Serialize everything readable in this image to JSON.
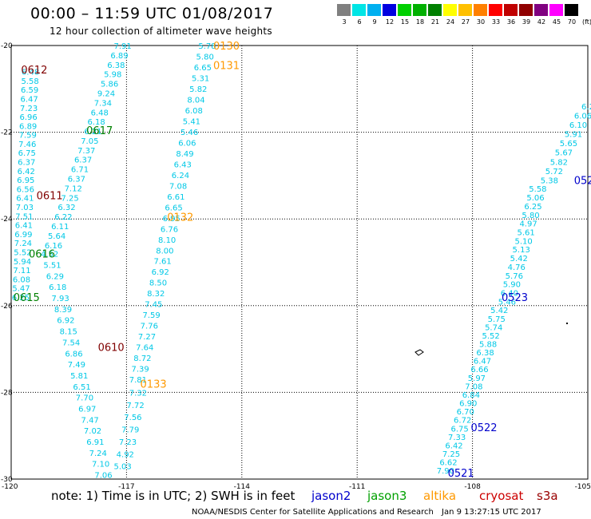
{
  "header": {
    "title": "00:00 – 11:59 UTC 01/08/2017",
    "subtitle": "12 hour collection of altimeter wave heights"
  },
  "colorbar": {
    "labels": [
      "3",
      "6",
      "9",
      "12",
      "15",
      "18",
      "21",
      "24",
      "27",
      "30",
      "33",
      "36",
      "39",
      "42",
      "45",
      "70",
      "(ft)"
    ],
    "colors": [
      "#808080",
      "#00e5e5",
      "#00b0f0",
      "#0000e0",
      "#00d000",
      "#00b000",
      "#008000",
      "#ffff00",
      "#ffc000",
      "#ff8000",
      "#ff0000",
      "#c00000",
      "#900000",
      "#800080",
      "#ff00ff",
      "#000000"
    ]
  },
  "axes": {
    "x_ticks": [
      "-120",
      "-117",
      "-114",
      "-111",
      "-108",
      "-105"
    ],
    "y_ticks": [
      "-20",
      "-22",
      "-24",
      "-26",
      "-28",
      "-30"
    ]
  },
  "footer": {
    "note": "note: 1) Time is in UTC; 2) SWH is in feet",
    "satellites": [
      {
        "name": "jason2",
        "color": "#0000cc"
      },
      {
        "name": "jason3",
        "color": "#00a000"
      },
      {
        "name": "altika",
        "color": "#ff9900"
      },
      {
        "name": "cryosat",
        "color": "#cc0000"
      },
      {
        "name": "s3a",
        "color": "#990000"
      }
    ],
    "credit": "NOAA/NESDIS Center for Satellite Applications and Research",
    "timestamp": "Jan  9 13:27:15 UTC 2017"
  },
  "map_data": {
    "xlim": [
      -120,
      -105
    ],
    "ylim": [
      -30,
      -20
    ],
    "colors": {
      "cyan": "#00c8e6",
      "blue": "#0000cc",
      "green": "#008000",
      "orange": "#ff9900",
      "darkred": "#800000"
    },
    "pass_labels": [
      {
        "text": "0130",
        "lon": -114.4,
        "lat": -20.0,
        "color": "orange"
      },
      {
        "text": "0131",
        "lon": -114.4,
        "lat": -20.45,
        "color": "orange"
      },
      {
        "text": "0132",
        "lon": -115.6,
        "lat": -23.95,
        "color": "orange"
      },
      {
        "text": "0133",
        "lon": -116.3,
        "lat": -27.8,
        "color": "orange"
      },
      {
        "text": "0612",
        "lon": -119.4,
        "lat": -20.55,
        "color": "darkred"
      },
      {
        "text": "0611",
        "lon": -119.0,
        "lat": -23.45,
        "color": "darkred"
      },
      {
        "text": "0610",
        "lon": -117.4,
        "lat": -26.95,
        "color": "darkred"
      },
      {
        "text": "0617",
        "lon": -117.7,
        "lat": -21.95,
        "color": "green"
      },
      {
        "text": "0616",
        "lon": -119.2,
        "lat": -24.8,
        "color": "green"
      },
      {
        "text": "0615",
        "lon": -119.6,
        "lat": -25.8,
        "color": "green"
      },
      {
        "text": "0523",
        "lon": -106.9,
        "lat": -25.8,
        "color": "blue"
      },
      {
        "text": "0522",
        "lon": -107.7,
        "lat": -28.8,
        "color": "blue"
      },
      {
        "text": "0521",
        "lon": -108.3,
        "lat": -29.85,
        "color": "blue"
      },
      {
        "text": "052",
        "lon": -105.1,
        "lat": -23.1,
        "color": "blue"
      }
    ],
    "tracks": [
      {
        "name": "track-a",
        "color": "cyan",
        "start": [
          -119.5,
          -20.6
        ],
        "end": [
          -119.75,
          -25.8
        ],
        "values": [
          "6.48",
          "5.58",
          "6.59",
          "6.47",
          "7.23",
          "6.96",
          "6.89",
          "7.59",
          "7.46",
          "6.75",
          "6.37",
          "6.42",
          "6.95",
          "6.56",
          "6.41",
          "7.03",
          "7.51",
          "6.41",
          "6.99",
          "7.24",
          "5.52",
          "5.94",
          "7.11",
          "6.08",
          "5.47",
          "6.25"
        ]
      },
      {
        "name": "track-b",
        "color": "cyan",
        "start": [
          -117.1,
          -20.0
        ],
        "end": [
          -118.9,
          -24.6
        ],
        "values": [
          "7.91",
          "6.89",
          "6.38",
          "5.98",
          "5.86",
          "9.24",
          "7.34",
          "6.48",
          "6.18",
          "6.21",
          "7.05",
          "7.37",
          "6.37",
          "6.71",
          "6.37",
          "7.12",
          "7.25",
          "6.32",
          "6.22",
          "6.11",
          "5.64",
          "6.16"
        ]
      },
      {
        "name": "track-c",
        "color": "cyan",
        "start": [
          -119.0,
          -24.8
        ],
        "end": [
          -117.6,
          -29.9
        ],
        "values": [
          "4.52",
          "5.51",
          "6.29",
          "6.18",
          "7.93",
          "8.39",
          "6.92",
          "8.15",
          "7.54",
          "6.86",
          "7.49",
          "5.81",
          "6.51",
          "7.70",
          "6.97",
          "7.47",
          "7.02",
          "6.91",
          "7.24",
          "7.10",
          "7.06"
        ]
      },
      {
        "name": "track-d",
        "color": "cyan",
        "start": [
          -114.9,
          -20.0
        ],
        "end": [
          -116.7,
          -27.7
        ],
        "values": [
          "5.78",
          "5.80",
          "6.65",
          "5.31",
          "5.82",
          "8.04",
          "6.08",
          "5.41",
          "5.46",
          "6.06",
          "8.49",
          "6.43",
          "6.24",
          "7.08",
          "6.61",
          "6.65",
          "6.95",
          "6.76",
          "8.10",
          "8.00",
          "7.61",
          "6.92",
          "8.50",
          "8.32",
          "7.45",
          "7.59",
          "7.76",
          "7.27",
          "7.64",
          "8.72",
          "7.39",
          "7.81"
        ]
      },
      {
        "name": "track-e",
        "color": "cyan",
        "start": [
          -116.7,
          -28.0
        ],
        "end": [
          -117.1,
          -29.7
        ],
        "values": [
          "7.32",
          "7.72",
          "7.56",
          "7.79",
          "7.23",
          "4.92",
          "5.03"
        ]
      },
      {
        "name": "track-f",
        "color": "cyan",
        "start": [
          -105.0,
          -21.4
        ],
        "end": [
          -106.0,
          -23.1
        ],
        "values": [
          "6.2",
          "6.06",
          "6.10",
          "5.91",
          "5.65",
          "5.67",
          "5.82",
          "5.72",
          "5.38"
        ]
      },
      {
        "name": "track-g",
        "color": "cyan",
        "start": [
          -106.3,
          -23.3
        ],
        "end": [
          -107.1,
          -25.9
        ],
        "values": [
          "5.58",
          "5.06",
          "6.25",
          "5.80",
          "4.97",
          "5.61",
          "5.10",
          "5.13",
          "5.42",
          "4.76",
          "5.76",
          "5.90",
          "6.40",
          "5.46"
        ]
      },
      {
        "name": "track-h",
        "color": "cyan",
        "start": [
          -107.3,
          -26.1
        ],
        "end": [
          -108.7,
          -29.8
        ],
        "values": [
          "5.42",
          "5.75",
          "5.74",
          "5.52",
          "5.88",
          "6.38",
          "6.47",
          "6.66",
          "5.97",
          "7.08",
          "6.84",
          "6.90",
          "6.70",
          "6.72",
          "6.75",
          "7.33",
          "6.42",
          "7.25",
          "6.62",
          "7.90"
        ]
      }
    ]
  }
}
